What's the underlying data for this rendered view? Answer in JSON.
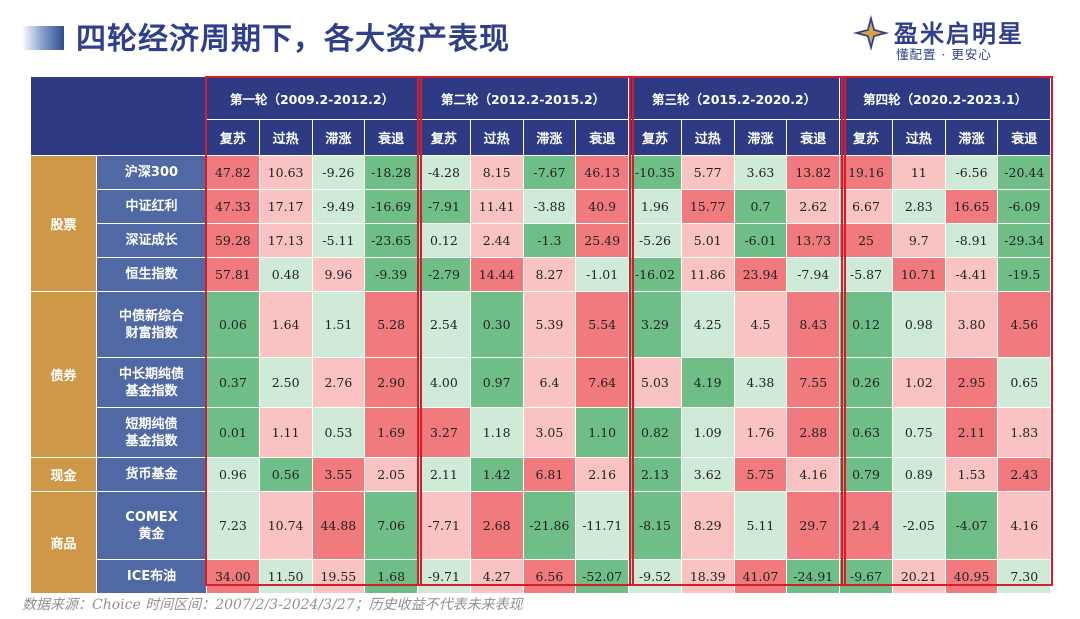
{
  "header": {
    "title": "四轮经济周期下，各大资产表现"
  },
  "logo": {
    "name": "盈米启明星",
    "slogan": "懂配置 · 更安心",
    "icon": "star-diamond-icon"
  },
  "table": {
    "rounds": [
      {
        "label": "第一轮（2009.2-2012.2）",
        "phases": [
          "复苏",
          "过热",
          "滞涨",
          "衰退"
        ]
      },
      {
        "label": "第二轮（2012.2-2015.2）",
        "phases": [
          "复苏",
          "过热",
          "滞涨",
          "衰退"
        ]
      },
      {
        "label": "第三轮（2015.2-2020.2）",
        "phases": [
          "复苏",
          "过热",
          "滞涨",
          "衰退"
        ]
      },
      {
        "label": "第四轮（2020.2-2023.1）",
        "phases": [
          "复苏",
          "过热",
          "滞涨",
          "衰退"
        ]
      }
    ],
    "rows": [
      {
        "category": "股票",
        "label": "沪深300",
        "values": [
          "47.82",
          "10.63",
          "-9.26",
          "-18.28",
          "-4.28",
          "8.15",
          "-7.67",
          "46.13",
          "-10.35",
          "5.77",
          "3.63",
          "13.82",
          "19.16",
          "11",
          "-6.56",
          "-20.44"
        ]
      },
      {
        "category": "股票",
        "label": "中证红利",
        "values": [
          "47.33",
          "17.17",
          "-9.49",
          "-16.69",
          "-7.91",
          "11.41",
          "-3.88",
          "40.9",
          "1.96",
          "15.77",
          "0.7",
          "2.62",
          "6.67",
          "2.83",
          "16.65",
          "-6.09"
        ]
      },
      {
        "category": "股票",
        "label": "深证成长",
        "values": [
          "59.28",
          "17.13",
          "-5.11",
          "-23.65",
          "0.12",
          "2.44",
          "-1.3",
          "25.49",
          "-5.26",
          "5.01",
          "-6.01",
          "13.73",
          "25",
          "9.7",
          "-8.91",
          "-29.34"
        ]
      },
      {
        "category": "股票",
        "label": "恒生指数",
        "values": [
          "57.81",
          "0.48",
          "9.96",
          "-9.39",
          "-2.79",
          "14.44",
          "8.27",
          "-1.01",
          "-16.02",
          "11.86",
          "23.94",
          "-7.94",
          "-5.87",
          "10.71",
          "-4.41",
          "-19.5"
        ]
      },
      {
        "category": "债券",
        "label": "中债新综合\n财富指数",
        "values": [
          "0.06",
          "1.64",
          "1.51",
          "5.28",
          "2.54",
          "0.30",
          "5.39",
          "5.54",
          "3.29",
          "4.25",
          "4.5",
          "8.43",
          "0.12",
          "0.98",
          "3.80",
          "4.56"
        ]
      },
      {
        "category": "债券",
        "label": "中长期纯债\n基金指数",
        "values": [
          "0.37",
          "2.50",
          "2.76",
          "2.90",
          "4.00",
          "0.97",
          "6.4",
          "7.64",
          "5.03",
          "4.19",
          "4.38",
          "7.55",
          "0.26",
          "1.02",
          "2.95",
          "0.65"
        ]
      },
      {
        "category": "债券",
        "label": "短期纯债\n基金指数",
        "values": [
          "0.01",
          "1.11",
          "0.53",
          "1.69",
          "3.27",
          "1.18",
          "3.05",
          "1.10",
          "0.82",
          "1.09",
          "1.76",
          "2.88",
          "0.63",
          "0.75",
          "2.11",
          "1.83"
        ]
      },
      {
        "category": "现金",
        "label": "货币基金",
        "values": [
          "0.96",
          "0.56",
          "3.55",
          "2.05",
          "2.11",
          "1.42",
          "6.81",
          "2.16",
          "2.13",
          "3.62",
          "5.75",
          "4.16",
          "0.79",
          "0.89",
          "1.53",
          "2.43"
        ]
      },
      {
        "category": "商品",
        "label": "COMEX\n黄金",
        "values": [
          "7.23",
          "10.74",
          "44.88",
          "7.06",
          "-7.71",
          "2.68",
          "-21.86",
          "-11.71",
          "-8.15",
          "8.29",
          "5.11",
          "29.7",
          "21.4",
          "-2.05",
          "-4.07",
          "4.16"
        ]
      },
      {
        "category": "商品",
        "label": "ICE布油",
        "values": [
          "34.00",
          "11.50",
          "19.55",
          "1.68",
          "-9.71",
          "4.27",
          "6.56",
          "-52.07",
          "-9.52",
          "18.39",
          "41.07",
          "-24.91",
          "-9.67",
          "20.21",
          "40.95",
          "7.30"
        ]
      }
    ],
    "categories": [
      {
        "label": "股票",
        "rows": 4
      },
      {
        "label": "债券",
        "rows": 3
      },
      {
        "label": "现金",
        "rows": 1
      },
      {
        "label": "商品",
        "rows": 2
      }
    ]
  },
  "colors": {
    "header_bg": "#2e3b84",
    "category_bg": "#cf9846",
    "row_label_bg": "#5068a3",
    "frame": "#d91c2a"
  },
  "footer": {
    "note": "数据来源：Choice  时间区间：2007/2/3-2024/3/27；历史收益不代表未来表现"
  }
}
